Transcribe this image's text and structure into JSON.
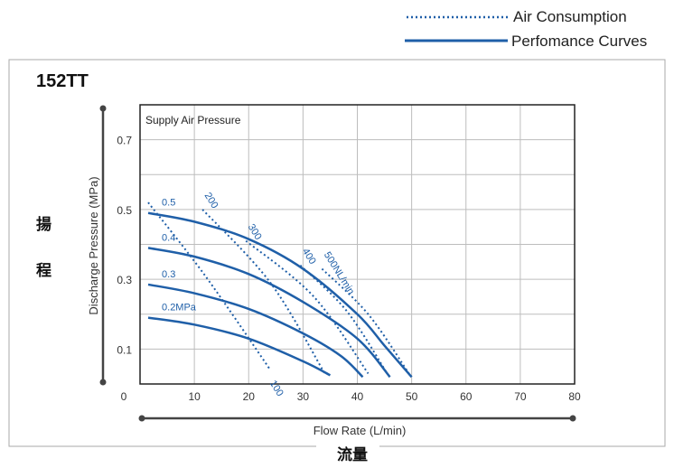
{
  "legend": {
    "items": [
      {
        "label": "Air Consumption",
        "style": "dotted"
      },
      {
        "label": "Perfomance Curves",
        "style": "solid"
      }
    ]
  },
  "model": "152TT",
  "side_text": [
    "揚",
    "程"
  ],
  "bottom_text": "流量",
  "colors": {
    "curve": "#1f5fa8",
    "grid": "#bdbdbd",
    "frame": "#222222",
    "axis": "#444444"
  },
  "chart_data": {
    "type": "line",
    "title": "152TT",
    "annotation": "Supply Air Pressure",
    "xlabel": "Flow Rate (L/min)",
    "ylabel": "Discharge Pressure (MPa)",
    "xlim": [
      0,
      80
    ],
    "ylim": [
      0,
      0.8
    ],
    "xticks": [
      0,
      10,
      20,
      30,
      40,
      50,
      60,
      70,
      80
    ],
    "yticks": [
      0.1,
      0.3,
      0.5,
      0.7
    ],
    "grid": true,
    "legend_position": "top-right",
    "performance_curves": [
      {
        "label": "0.5",
        "points": [
          [
            1.5,
            0.49
          ],
          [
            10,
            0.465
          ],
          [
            20,
            0.415
          ],
          [
            30,
            0.33
          ],
          [
            40,
            0.2
          ],
          [
            45,
            0.11
          ],
          [
            50,
            0.02
          ]
        ]
      },
      {
        "label": "0.4",
        "points": [
          [
            1.5,
            0.39
          ],
          [
            10,
            0.365
          ],
          [
            20,
            0.315
          ],
          [
            30,
            0.235
          ],
          [
            40,
            0.13
          ],
          [
            46,
            0.02
          ]
        ]
      },
      {
        "label": "0.3",
        "points": [
          [
            1.5,
            0.285
          ],
          [
            10,
            0.26
          ],
          [
            20,
            0.215
          ],
          [
            30,
            0.145
          ],
          [
            37,
            0.08
          ],
          [
            41,
            0.02
          ]
        ]
      },
      {
        "label": "0.2MPa",
        "points": [
          [
            1.5,
            0.19
          ],
          [
            10,
            0.17
          ],
          [
            20,
            0.13
          ],
          [
            30,
            0.065
          ],
          [
            35,
            0.025
          ]
        ]
      }
    ],
    "air_consumption_lines": [
      {
        "label": "100",
        "points": [
          [
            1.5,
            0.52
          ],
          [
            12,
            0.31
          ],
          [
            24,
            0.04
          ]
        ]
      },
      {
        "label": "200",
        "points": [
          [
            11.5,
            0.5
          ],
          [
            24,
            0.29
          ],
          [
            34,
            0.03
          ]
        ]
      },
      {
        "label": "300",
        "points": [
          [
            19.5,
            0.41
          ],
          [
            32,
            0.25
          ],
          [
            42,
            0.03
          ]
        ]
      },
      {
        "label": "400",
        "points": [
          [
            29.5,
            0.34
          ],
          [
            38,
            0.21
          ],
          [
            45.5,
            0.03
          ]
        ]
      },
      {
        "label": "500NL/min",
        "points": [
          [
            33.5,
            0.33
          ],
          [
            42,
            0.2
          ],
          [
            49.5,
            0.03
          ]
        ]
      }
    ]
  }
}
